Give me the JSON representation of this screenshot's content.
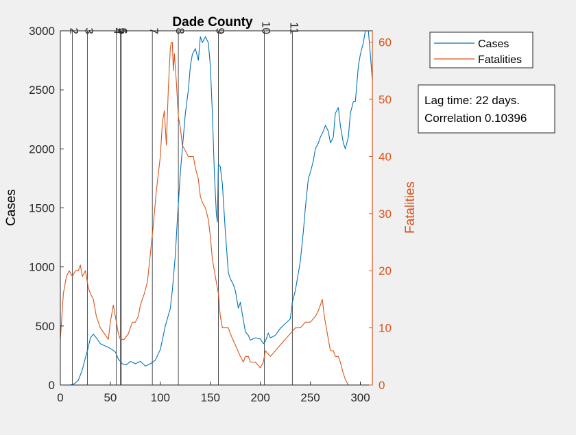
{
  "chart_data": {
    "type": "line",
    "title": "Dade County",
    "xlabel": "",
    "ylabel": "Cases",
    "y2label": "Fatalities",
    "xlim": [
      0,
      312
    ],
    "ylim": [
      0,
      3000
    ],
    "y2lim": [
      0,
      62
    ],
    "xticks": [
      0,
      50,
      100,
      150,
      200,
      250,
      300
    ],
    "yticks": [
      0,
      500,
      1000,
      1500,
      2000,
      2500,
      3000
    ],
    "y2ticks": [
      0,
      10,
      20,
      30,
      40,
      50,
      60
    ],
    "grid": false,
    "legend": {
      "placement": "top-right-outside",
      "entries": [
        "Cases",
        "Fatalities"
      ]
    },
    "annotation": {
      "lines": [
        "Lag time: 22 days.",
        "Correlation 0.10396"
      ]
    },
    "colors": {
      "cases": "#0072bd",
      "fatalities": "#d95319"
    },
    "event_lines": [
      {
        "x": 12,
        "label": "2"
      },
      {
        "x": 27,
        "label": "3"
      },
      {
        "x": 56,
        "label": "4"
      },
      {
        "x": 60,
        "label": "5"
      },
      {
        "x": 61,
        "label": "6"
      },
      {
        "x": 92,
        "label": "7"
      },
      {
        "x": 118,
        "label": "8"
      },
      {
        "x": 158,
        "label": "9"
      },
      {
        "x": 204,
        "label": "10"
      },
      {
        "x": 232,
        "label": "11"
      }
    ],
    "series": [
      {
        "name": "Cases",
        "axis": "left",
        "x": [
          0,
          10,
          14,
          18,
          22,
          25,
          28,
          30,
          33,
          36,
          40,
          45,
          50,
          55,
          58,
          62,
          66,
          70,
          75,
          80,
          85,
          90,
          95,
          100,
          105,
          110,
          112,
          115,
          117,
          120,
          123,
          125,
          128,
          130,
          132,
          135,
          138,
          140,
          142,
          145,
          148,
          150,
          152,
          154,
          156,
          157,
          158,
          160,
          162,
          165,
          168,
          170,
          173,
          175,
          178,
          180,
          183,
          185,
          188,
          190,
          195,
          200,
          203,
          205,
          208,
          210,
          215,
          220,
          225,
          230,
          232,
          235,
          238,
          240,
          243,
          245,
          248,
          250,
          253,
          255,
          258,
          260,
          263,
          265,
          268,
          270,
          273,
          275,
          278,
          280,
          283,
          285,
          288,
          290,
          293,
          295,
          298,
          300,
          303,
          305,
          308,
          310,
          312
        ],
        "values": [
          0,
          0,
          10,
          40,
          130,
          230,
          320,
          400,
          430,
          400,
          350,
          330,
          310,
          280,
          220,
          180,
          170,
          200,
          180,
          200,
          160,
          180,
          210,
          300,
          500,
          650,
          800,
          1100,
          1400,
          1800,
          2100,
          2300,
          2500,
          2700,
          2800,
          2850,
          2750,
          2950,
          2900,
          2950,
          2900,
          2700,
          2300,
          1800,
          1450,
          1380,
          1870,
          1850,
          1700,
          1300,
          950,
          900,
          850,
          800,
          650,
          700,
          550,
          450,
          420,
          380,
          400,
          390,
          350,
          370,
          440,
          400,
          420,
          480,
          520,
          560,
          700,
          800,
          950,
          1050,
          1300,
          1500,
          1750,
          1800,
          1900,
          2000,
          2050,
          2100,
          2150,
          2200,
          2150,
          2050,
          2100,
          2300,
          2350,
          2200,
          2050,
          2000,
          2100,
          2300,
          2400,
          2400,
          2700,
          2800,
          2900,
          3000,
          3000,
          2800,
          2580
        ]
      },
      {
        "name": "Fatalities",
        "axis": "right",
        "x": [
          0,
          3,
          6,
          9,
          12,
          15,
          18,
          20,
          22,
          25,
          28,
          30,
          33,
          36,
          40,
          44,
          48,
          50,
          53,
          55,
          58,
          60,
          64,
          68,
          72,
          75,
          78,
          80,
          84,
          87,
          90,
          93,
          96,
          100,
          102,
          104,
          106,
          108,
          110,
          111,
          112,
          113,
          114,
          116,
          118,
          120,
          122,
          125,
          128,
          130,
          133,
          135,
          138,
          140,
          142,
          145,
          148,
          150,
          152,
          154,
          156,
          158,
          160,
          162,
          165,
          168,
          170,
          175,
          180,
          183,
          185,
          188,
          190,
          195,
          200,
          203,
          205,
          210,
          215,
          220,
          225,
          230,
          235,
          240,
          245,
          250,
          255,
          258,
          260,
          262,
          264,
          266,
          268,
          270,
          273,
          275,
          278,
          280,
          283,
          285,
          288,
          290
        ],
        "values": [
          8,
          16,
          19,
          20,
          19,
          20,
          20,
          21,
          19,
          20,
          17,
          16,
          15,
          12,
          10,
          9,
          8,
          11,
          14,
          12,
          9,
          8,
          8,
          9,
          11,
          11,
          12,
          14,
          16,
          18,
          23,
          28,
          34,
          40,
          46,
          48,
          42,
          52,
          59,
          60,
          60,
          55,
          58,
          53,
          47,
          45,
          42,
          41,
          40,
          40,
          40,
          38,
          36,
          33,
          32,
          31,
          29,
          26,
          22,
          20,
          18,
          16,
          12,
          10,
          10,
          10,
          9,
          7,
          5,
          4,
          5,
          5,
          4,
          4,
          3,
          4,
          6,
          5,
          6,
          7,
          8,
          9,
          10,
          10,
          11,
          11,
          12,
          13,
          14,
          15,
          12,
          10,
          8,
          6,
          6,
          5,
          5,
          4,
          2,
          1,
          0,
          0
        ]
      }
    ]
  }
}
